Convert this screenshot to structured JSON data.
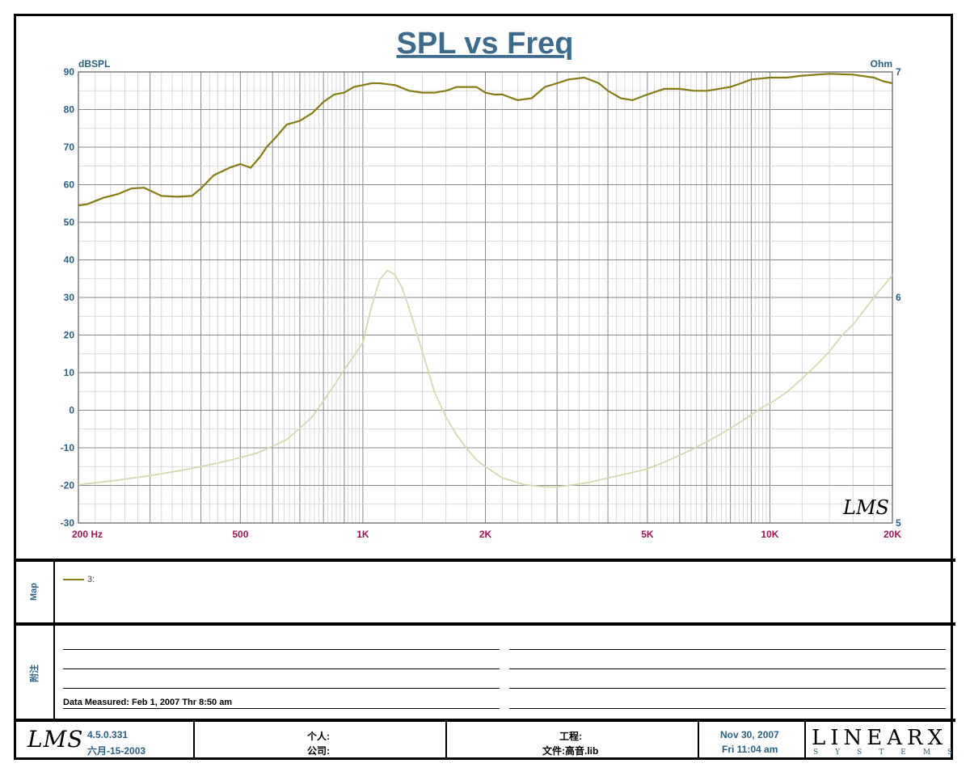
{
  "chart_data": {
    "type": "line",
    "title": "SPL vs Freq",
    "ylabel_left": "dBSPL",
    "ylabel_right": "Ohm",
    "x_scale": "log",
    "xlim": [
      200,
      20000
    ],
    "ylim_left": [
      -30,
      90
    ],
    "ylim_right": [
      5,
      7
    ],
    "x_tick_labels": [
      {
        "value": 200,
        "label": "200  Hz"
      },
      {
        "value": 500,
        "label": "500"
      },
      {
        "value": 1000,
        "label": "1K"
      },
      {
        "value": 2000,
        "label": "2K"
      },
      {
        "value": 5000,
        "label": "5K"
      },
      {
        "value": 10000,
        "label": "10K"
      },
      {
        "value": 20000,
        "label": "20K"
      }
    ],
    "y_left_ticks": [
      90,
      80,
      70,
      60,
      50,
      40,
      30,
      20,
      10,
      0,
      -10,
      -20,
      -30
    ],
    "y_right_ticks": [
      7,
      6,
      5
    ],
    "grid": true,
    "series": [
      {
        "name": "3:",
        "axis": "left",
        "color": "#877b17",
        "x": [
          200,
          210,
          230,
          250,
          270,
          290,
          320,
          350,
          380,
          400,
          430,
          470,
          500,
          530,
          560,
          580,
          610,
          650,
          700,
          750,
          800,
          850,
          900,
          950,
          1000,
          1050,
          1100,
          1200,
          1300,
          1400,
          1500,
          1600,
          1700,
          1800,
          1900,
          2000,
          2100,
          2200,
          2400,
          2600,
          2800,
          3000,
          3200,
          3500,
          3800,
          4000,
          4300,
          4600,
          5000,
          5500,
          6000,
          6500,
          7000,
          7500,
          8000,
          8500,
          9000,
          10000,
          11000,
          12000,
          14000,
          16000,
          18000,
          19000,
          20000
        ],
        "y": [
          54.5,
          54.8,
          56.5,
          57.5,
          59,
          59.2,
          57,
          56.8,
          57,
          59,
          62.5,
          64.5,
          65.5,
          64.5,
          67.5,
          70,
          72.5,
          76,
          77,
          79,
          82,
          84,
          84.5,
          86,
          86.5,
          87,
          87,
          86.5,
          85,
          84.5,
          84.5,
          85,
          86,
          86,
          86,
          84.5,
          84,
          84,
          82.5,
          83,
          86,
          87,
          88,
          88.5,
          87,
          85,
          83,
          82.5,
          84,
          85.5,
          85.5,
          85,
          85,
          85.5,
          86,
          87,
          88,
          88.5,
          88.5,
          89,
          89.5,
          89.3,
          88.5,
          87.5,
          87
        ]
      },
      {
        "name": "",
        "axis": "right",
        "color": "#d6d8b4",
        "x": [
          200,
          250,
          300,
          350,
          400,
          450,
          500,
          550,
          600,
          650,
          700,
          750,
          800,
          850,
          900,
          950,
          1000,
          1050,
          1100,
          1150,
          1200,
          1250,
          1300,
          1400,
          1500,
          1600,
          1700,
          1800,
          1900,
          2000,
          2200,
          2500,
          2800,
          3000,
          3300,
          3600,
          4000,
          4500,
          5000,
          5500,
          6000,
          6500,
          7000,
          7500,
          8000,
          8500,
          9000,
          9500,
          10000,
          11000,
          12000,
          13000,
          14000,
          15000,
          16000,
          17000,
          18000,
          19000,
          20000
        ],
        "y": [
          5.17,
          5.19,
          5.21,
          5.23,
          5.25,
          5.27,
          5.29,
          5.31,
          5.34,
          5.37,
          5.42,
          5.47,
          5.54,
          5.61,
          5.68,
          5.74,
          5.8,
          5.96,
          6.08,
          6.12,
          6.1,
          6.04,
          5.95,
          5.76,
          5.58,
          5.47,
          5.39,
          5.33,
          5.28,
          5.25,
          5.2,
          5.17,
          5.16,
          5.16,
          5.17,
          5.18,
          5.2,
          5.22,
          5.24,
          5.27,
          5.3,
          5.33,
          5.36,
          5.39,
          5.42,
          5.45,
          5.48,
          5.51,
          5.53,
          5.58,
          5.64,
          5.7,
          5.76,
          5.83,
          5.88,
          5.94,
          6.0,
          6.05,
          6.1
        ]
      }
    ]
  },
  "watermark_text": "LMS",
  "map_panel": {
    "label": "Map",
    "legend_entry": "3:"
  },
  "notes_panel": {
    "label": "附注",
    "measured_text": "Data Measured: Feb  1, 2007  Thr  8:50 am"
  },
  "footer": {
    "logo": "LMS",
    "version": "4.5.0.331",
    "version_date": "六月-15-2003",
    "person_label": "个人:",
    "company_label": "公司:",
    "project_label": "工程:",
    "file_label": "文件:高音.lib",
    "print_date": "Nov 30, 2007",
    "print_time": "Fri 11:04 am",
    "brand": "LINEARX",
    "brand_sub": "SYSTEMS"
  }
}
